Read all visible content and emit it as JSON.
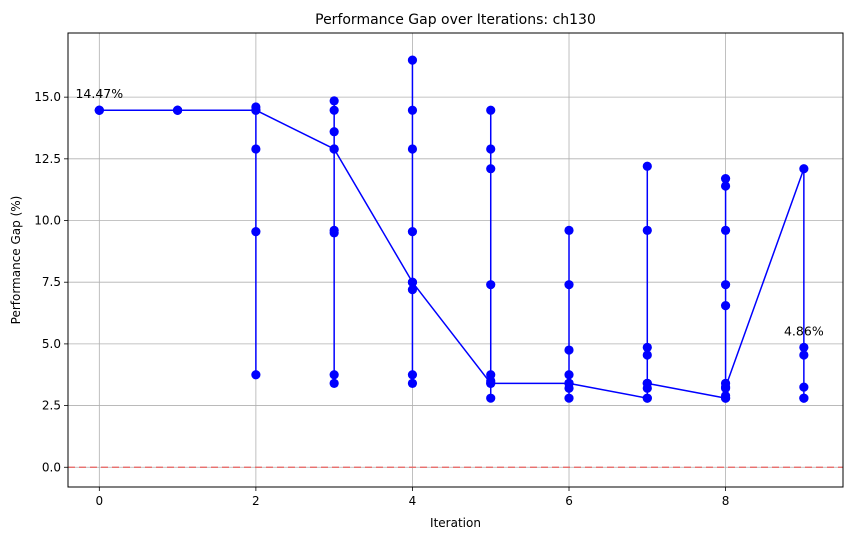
{
  "chart_data": {
    "type": "line",
    "title": "Performance Gap over Iterations: ch130",
    "xlabel": "Iteration",
    "ylabel": "Performance Gap (%)",
    "xlim": [
      -0.4,
      9.5
    ],
    "ylim": [
      -0.8,
      17.6
    ],
    "x_ticks": [
      0,
      2,
      4,
      6,
      8
    ],
    "y_ticks": [
      0.0,
      2.5,
      5.0,
      7.5,
      10.0,
      12.5,
      15.0
    ],
    "x_tick_labels": [
      "0",
      "2",
      "4",
      "6",
      "8"
    ],
    "y_tick_labels": [
      "0.0",
      "2.5",
      "5.0",
      "7.5",
      "10.0",
      "12.5",
      "15.0"
    ],
    "grid": true,
    "reference_line": {
      "y": 0,
      "color": "#e8605e",
      "style": "dashed"
    },
    "series_color": "#0000ff",
    "series": [
      {
        "points": [
          [
            0,
            14.47
          ],
          [
            0,
            14.47
          ],
          [
            0,
            14.47
          ],
          [
            1,
            14.47
          ],
          [
            1,
            14.47
          ],
          [
            1,
            14.47
          ],
          [
            2,
            14.47
          ],
          [
            2,
            14.6
          ],
          [
            2,
            12.9
          ],
          [
            2,
            9.55
          ],
          [
            2,
            3.75
          ],
          [
            2,
            14.47
          ],
          [
            3,
            12.9
          ],
          [
            3,
            14.85
          ],
          [
            3,
            14.47
          ],
          [
            3,
            13.6
          ],
          [
            3,
            9.6
          ],
          [
            3,
            9.5
          ],
          [
            3,
            3.75
          ],
          [
            3,
            3.4
          ],
          [
            3,
            12.9
          ],
          [
            4,
            7.5
          ],
          [
            4,
            16.5
          ],
          [
            4,
            14.47
          ],
          [
            4,
            12.9
          ],
          [
            4,
            9.55
          ],
          [
            4,
            7.2
          ],
          [
            4,
            3.75
          ],
          [
            4,
            3.4
          ],
          [
            4,
            7.5
          ],
          [
            5,
            3.4
          ],
          [
            5,
            14.47
          ],
          [
            5,
            12.9
          ],
          [
            5,
            12.1
          ],
          [
            5,
            7.4
          ],
          [
            5,
            3.75
          ],
          [
            5,
            3.5
          ],
          [
            5,
            2.8
          ],
          [
            5,
            3.4
          ],
          [
            6,
            3.4
          ],
          [
            6,
            9.6
          ],
          [
            6,
            7.4
          ],
          [
            6,
            4.75
          ],
          [
            6,
            3.75
          ],
          [
            6,
            3.4
          ],
          [
            6,
            3.2
          ],
          [
            6,
            2.8
          ],
          [
            6,
            3.4
          ],
          [
            7,
            2.8
          ],
          [
            7,
            12.2
          ],
          [
            7,
            9.6
          ],
          [
            7,
            4.86
          ],
          [
            7,
            4.55
          ],
          [
            7,
            3.4
          ],
          [
            7,
            3.2
          ],
          [
            7,
            2.8
          ],
          [
            7,
            3.4
          ],
          [
            8,
            2.8
          ],
          [
            8,
            11.7
          ],
          [
            8,
            11.4
          ],
          [
            8,
            9.6
          ],
          [
            8,
            7.4
          ],
          [
            8,
            6.55
          ],
          [
            8,
            3.4
          ],
          [
            8,
            3.2
          ],
          [
            8,
            2.9
          ],
          [
            8,
            2.8
          ],
          [
            8,
            3.25
          ],
          [
            9,
            12.1
          ],
          [
            9,
            4.86
          ],
          [
            9,
            4.55
          ],
          [
            9,
            3.25
          ],
          [
            9,
            2.8
          ],
          [
            9,
            2.8
          ]
        ]
      }
    ],
    "annotations": [
      {
        "text": "14.47%",
        "x": 0,
        "y": 14.47
      },
      {
        "text": "4.86%",
        "x": 9,
        "y": 4.86
      }
    ]
  }
}
